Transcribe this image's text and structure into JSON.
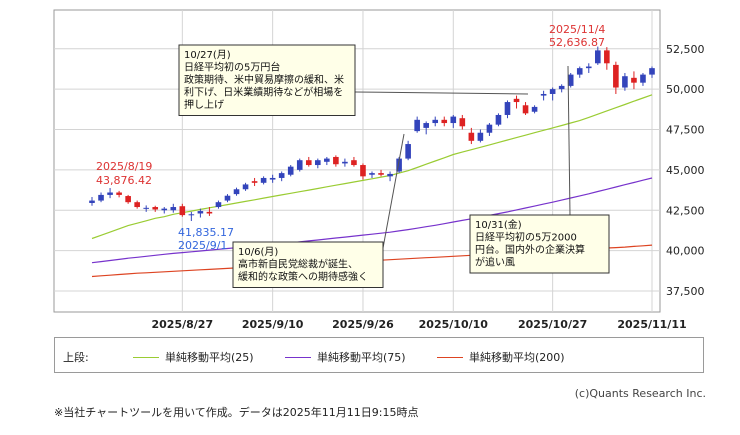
{
  "chart_data": {
    "type": "candlestick",
    "x_tick_labels": [
      "2025/8/27",
      "2025/9/10",
      "2025/9/26",
      "2025/10/10",
      "2025/10/27",
      "2025/11/11"
    ],
    "y_ticks": [
      37500,
      40000,
      42500,
      45000,
      47500,
      50000,
      52500
    ],
    "y_tick_labels": [
      "37,500",
      "40,000",
      "42,500",
      "45,000",
      "47,500",
      "50,000",
      "52,500"
    ],
    "ylim": [
      36200,
      54900
    ],
    "grid": true,
    "colors": {
      "up": "#3344bb",
      "down": "#dd2222",
      "ma25": "#9acc33",
      "ma75": "#7733cc",
      "ma200": "#dd4422"
    },
    "candles": [
      [
        42950,
        43320,
        42780,
        43100
      ],
      [
        43100,
        43600,
        43000,
        43450
      ],
      [
        43450,
        43876,
        43250,
        43600
      ],
      [
        43600,
        43700,
        43300,
        43450
      ],
      [
        43380,
        43450,
        42900,
        43000
      ],
      [
        43000,
        43100,
        42600,
        42700
      ],
      [
        42600,
        42800,
        42400,
        42650
      ],
      [
        42700,
        42780,
        42400,
        42550
      ],
      [
        42500,
        42700,
        42300,
        42600
      ],
      [
        42500,
        42900,
        42350,
        42700
      ],
      [
        42750,
        42900,
        42100,
        42200
      ],
      [
        42200,
        42400,
        41835,
        42250
      ],
      [
        42300,
        42600,
        42050,
        42450
      ],
      [
        42400,
        42700,
        42150,
        42300
      ],
      [
        42700,
        43100,
        42600,
        43000
      ],
      [
        43100,
        43500,
        43000,
        43400
      ],
      [
        43500,
        43900,
        43400,
        43800
      ],
      [
        43800,
        44200,
        43700,
        44100
      ],
      [
        44300,
        44500,
        44000,
        44200
      ],
      [
        44200,
        44600,
        44100,
        44500
      ],
      [
        44400,
        44700,
        44200,
        44500
      ],
      [
        44500,
        44900,
        44300,
        44800
      ],
      [
        44700,
        45300,
        44600,
        45200
      ],
      [
        45000,
        45700,
        44900,
        45600
      ],
      [
        45600,
        45800,
        45200,
        45300
      ],
      [
        45300,
        45700,
        45100,
        45600
      ],
      [
        45500,
        45800,
        45300,
        45700
      ],
      [
        45800,
        45900,
        45200,
        45350
      ],
      [
        45400,
        45700,
        45200,
        45500
      ],
      [
        45600,
        45800,
        45200,
        45300
      ],
      [
        45300,
        45400,
        44400,
        44600
      ],
      [
        44700,
        44900,
        44500,
        44800
      ],
      [
        44800,
        45000,
        44600,
        44700
      ],
      [
        44600,
        44900,
        44300,
        44750
      ],
      [
        44900,
        45800,
        44800,
        45700
      ],
      [
        45700,
        46800,
        45600,
        46600
      ],
      [
        47400,
        48300,
        47300,
        48100
      ],
      [
        47600,
        48000,
        47200,
        47900
      ],
      [
        47900,
        48300,
        47700,
        48100
      ],
      [
        48100,
        48300,
        47700,
        47900
      ],
      [
        47900,
        48400,
        47600,
        48300
      ],
      [
        48200,
        48400,
        47500,
        47700
      ],
      [
        47300,
        47600,
        46600,
        46800
      ],
      [
        46800,
        47500,
        46700,
        47300
      ],
      [
        47300,
        47900,
        47100,
        47800
      ],
      [
        47800,
        48500,
        47700,
        48400
      ],
      [
        48400,
        49300,
        48200,
        49200
      ],
      [
        49400,
        49600,
        48800,
        49200
      ],
      [
        49000,
        49200,
        48400,
        48500
      ],
      [
        48600,
        49000,
        48500,
        48900
      ],
      [
        49600,
        49900,
        49300,
        49700
      ],
      [
        49700,
        50100,
        49300,
        50000
      ],
      [
        50000,
        50300,
        49800,
        50200
      ],
      [
        50200,
        51000,
        50100,
        50900
      ],
      [
        50900,
        51400,
        50700,
        51300
      ],
      [
        51300,
        51600,
        51000,
        51400
      ],
      [
        51600,
        52636,
        51500,
        52400
      ],
      [
        52400,
        52600,
        51200,
        51600
      ],
      [
        51500,
        51700,
        49700,
        50100
      ],
      [
        50100,
        51000,
        49900,
        50800
      ],
      [
        50700,
        51100,
        50000,
        50400
      ],
      [
        50400,
        51000,
        50200,
        50900
      ],
      [
        50900,
        51400,
        50700,
        51300
      ]
    ],
    "series": [
      {
        "name": "単純移動平均(25)",
        "values": [
          40750,
          40950,
          41150,
          41350,
          41550,
          41700,
          41850,
          42000,
          42100,
          42250,
          42350,
          42450,
          42550,
          42650,
          42750,
          42850,
          42950,
          43050,
          43150,
          43250,
          43350,
          43450,
          43550,
          43650,
          43750,
          43850,
          43950,
          44050,
          44150,
          44250,
          44350,
          44450,
          44550,
          44650,
          44800,
          44950,
          45150,
          45350,
          45550,
          45750,
          45950,
          46100,
          46250,
          46400,
          46550,
          46700,
          46850,
          47000,
          47150,
          47300,
          47450,
          47600,
          47750,
          47900,
          48050,
          48250,
          48450,
          48650,
          48850,
          49050,
          49250,
          49450,
          49650
        ]
      },
      {
        "name": "単純移動平均(75)",
        "values": [
          39250,
          39320,
          39390,
          39460,
          39530,
          39590,
          39650,
          39710,
          39770,
          39830,
          39880,
          39930,
          39980,
          40030,
          40080,
          40130,
          40180,
          40230,
          40280,
          40330,
          40380,
          40430,
          40480,
          40540,
          40600,
          40660,
          40720,
          40780,
          40840,
          40900,
          40960,
          41020,
          41080,
          41140,
          41220,
          41300,
          41390,
          41480,
          41570,
          41670,
          41770,
          41870,
          41970,
          42070,
          42180,
          42290,
          42400,
          42520,
          42640,
          42760,
          42880,
          43000,
          43130,
          43260,
          43390,
          43520,
          43660,
          43800,
          43940,
          44080,
          44220,
          44360,
          44500
        ]
      },
      {
        "name": "単純移動平均(200)",
        "values": [
          38400,
          38440,
          38480,
          38520,
          38560,
          38600,
          38630,
          38660,
          38690,
          38720,
          38750,
          38780,
          38810,
          38840,
          38870,
          38900,
          38930,
          38960,
          38990,
          39020,
          39050,
          39080,
          39110,
          39140,
          39170,
          39200,
          39230,
          39260,
          39290,
          39320,
          39350,
          39380,
          39410,
          39440,
          39470,
          39500,
          39530,
          39560,
          39590,
          39620,
          39650,
          39680,
          39710,
          39740,
          39770,
          39800,
          39830,
          39860,
          39890,
          39920,
          39950,
          39980,
          40010,
          40040,
          40070,
          40100,
          40130,
          40160,
          40190,
          40220,
          40260,
          40300,
          40340
        ]
      }
    ],
    "annotations": {
      "high_date": "2025/11/4",
      "high_value": "52,636.87",
      "date_819": "2025/8/19",
      "value_819": "43,876.42",
      "low_value": "41,835.17",
      "low_date": "2025/9/1",
      "callout_1027": [
        "10/27(月)",
        "日経平均初の5万円台",
        "政策期待、米中貿易摩擦の緩和、米",
        "利下げ、日米業績期待などが相場を",
        "押し上げ"
      ],
      "callout_106": [
        "10/6(月)",
        "高市新自民党総裁が誕生、",
        "緩和的な政策への期待感強く"
      ],
      "callout_1031": [
        "10/31(金)",
        "日経平均初の5万2000",
        "円台。国内外の企業決算",
        "が追い風"
      ]
    }
  },
  "legend": {
    "title": "上段:",
    "items": [
      {
        "label": "単純移動平均(25)",
        "color": "#9acc33"
      },
      {
        "label": "単純移動平均(75)",
        "color": "#7733cc"
      },
      {
        "label": "単純移動平均(200)",
        "color": "#dd4422"
      }
    ]
  },
  "credit": "(c)Quants Research Inc.",
  "footnote": "※当社チャートツールを用いて作成。データは2025年11月11日9:15時点"
}
